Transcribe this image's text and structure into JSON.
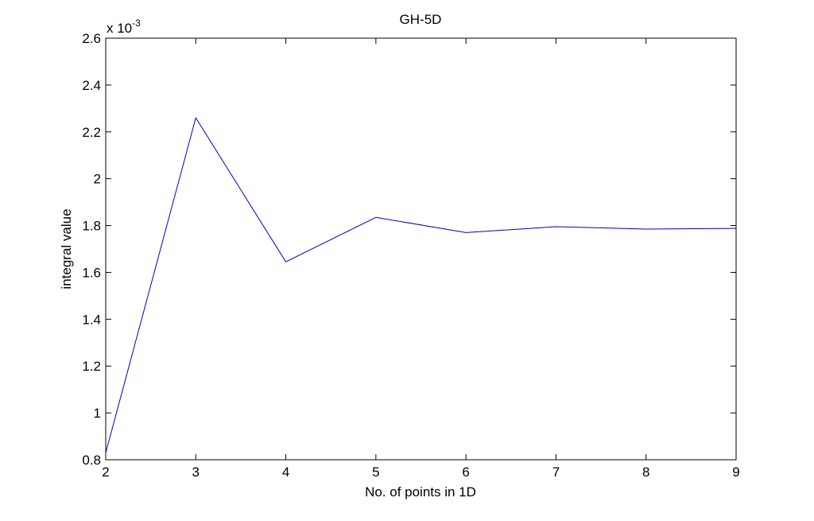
{
  "chart_data": {
    "type": "line",
    "title": "GH-5D",
    "xlabel": "No. of points in 1D",
    "ylabel": "integral value",
    "xlim": [
      2,
      9
    ],
    "ylim": [
      0.8,
      2.6
    ],
    "y_scale_base": "x 10",
    "y_scale_exponent": "-3",
    "x_ticks": [
      2,
      3,
      4,
      5,
      6,
      7,
      8,
      9
    ],
    "y_ticks": [
      0.8,
      1,
      1.2,
      1.4,
      1.6,
      1.8,
      2,
      2.2,
      2.4,
      2.6
    ],
    "x_tick_labels": [
      "2",
      "3",
      "4",
      "5",
      "6",
      "7",
      "8",
      "9"
    ],
    "y_tick_labels": [
      "0.8",
      "1",
      "1.2",
      "1.4",
      "1.6",
      "1.8",
      "2",
      "2.2",
      "2.4",
      "2.6"
    ],
    "grid": false,
    "series": [
      {
        "x": [
          2,
          3,
          4,
          5,
          6,
          7,
          8,
          9
        ],
        "values": [
          0.83,
          2.26,
          1.645,
          1.835,
          1.77,
          1.795,
          1.785,
          1.788
        ],
        "color": "#0000cc"
      }
    ]
  }
}
